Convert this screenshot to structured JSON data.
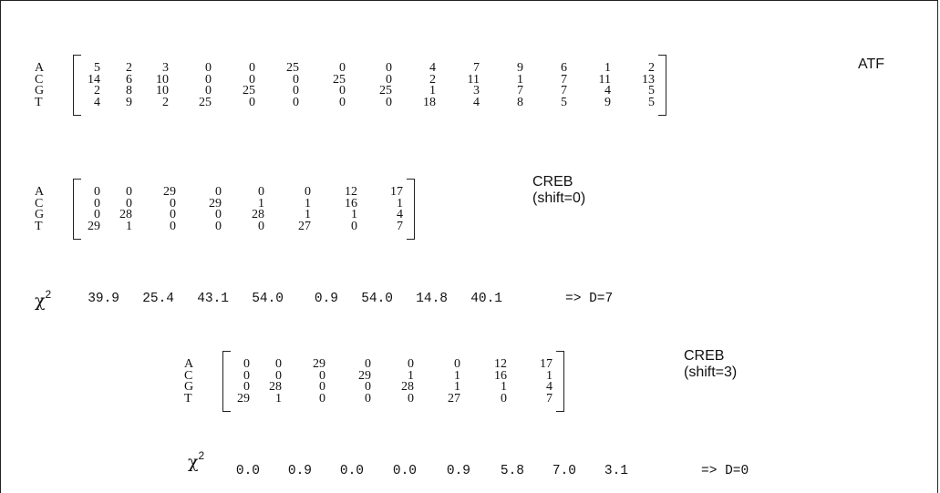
{
  "row_labels": [
    "A",
    "C",
    "G",
    "T"
  ],
  "matrices": [
    {
      "title": "ATF",
      "rows": [
        [
          "5",
          "2",
          "3",
          "0",
          "0",
          "25",
          "0",
          "0",
          "4",
          "7",
          "9",
          "6",
          "1",
          "2"
        ],
        [
          "14",
          "6",
          "10",
          "0",
          "0",
          "0",
          "25",
          "0",
          "2",
          "11",
          "1",
          "7",
          "11",
          "13"
        ],
        [
          "2",
          "8",
          "10",
          "0",
          "25",
          "0",
          "0",
          "25",
          "1",
          "3",
          "7",
          "7",
          "4",
          "5"
        ],
        [
          "4",
          "9",
          "2",
          "25",
          "0",
          "0",
          "0",
          "0",
          "18",
          "4",
          "8",
          "5",
          "9",
          "5"
        ]
      ]
    },
    {
      "title": "CREB\n(shift=0)",
      "title_lines": [
        "CREB",
        "(shift=0)"
      ],
      "rows": [
        [
          "0",
          "0",
          "29",
          "0",
          "0",
          "0",
          "12",
          "17"
        ],
        [
          "0",
          "0",
          "0",
          "29",
          "1",
          "1",
          "16",
          "1"
        ],
        [
          "0",
          "28",
          "0",
          "0",
          "28",
          "1",
          "1",
          "4"
        ],
        [
          "29",
          "1",
          "0",
          "0",
          "0",
          "27",
          "0",
          "7"
        ]
      ]
    },
    {
      "title_lines": [
        "CREB",
        "(shift=3)"
      ],
      "rows": [
        [
          "0",
          "0",
          "29",
          "0",
          "0",
          "0",
          "12",
          "17"
        ],
        [
          "0",
          "0",
          "0",
          "29",
          "1",
          "1",
          "16",
          "1"
        ],
        [
          "0",
          "28",
          "0",
          "0",
          "28",
          "1",
          "1",
          "4"
        ],
        [
          "29",
          "1",
          "0",
          "0",
          "0",
          "27",
          "0",
          "7"
        ]
      ]
    }
  ],
  "chi": [
    {
      "symbol": "χ",
      "exp": "2",
      "values": [
        "39.9",
        "25.4",
        "43.1",
        "54.0",
        "0.9",
        "54.0",
        "14.8",
        "40.1"
      ],
      "result": "=> D=7"
    },
    {
      "symbol": "χ",
      "exp": "2",
      "values": [
        "0.0",
        "0.9",
        "0.0",
        "0.0",
        "0.9",
        "5.8",
        "7.0",
        "3.1"
      ],
      "result": "=> D=0"
    }
  ]
}
